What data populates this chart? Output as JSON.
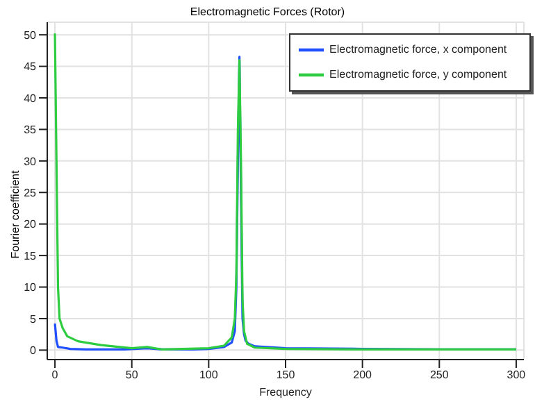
{
  "chart_data": {
    "type": "line",
    "title": "Electromagnetic Forces (Rotor)",
    "xlabel": "Frequency",
    "ylabel": "Fourier coefficient",
    "xlim": [
      -5,
      305
    ],
    "xticks": [
      0,
      50,
      100,
      150,
      200,
      250,
      300
    ],
    "ylim": [
      -1.5,
      52
    ],
    "yticks": [
      0,
      5,
      10,
      15,
      20,
      25,
      30,
      35,
      40,
      45,
      50
    ],
    "grid": true,
    "legend": "top right",
    "marker": "none",
    "line_style": "solid",
    "series": [
      {
        "name": "Electromagnetic force, x component",
        "color": "#1f4fff",
        "x": [
          0,
          1,
          2,
          5,
          10,
          20,
          30,
          45,
          60,
          70,
          90,
          100,
          110,
          115,
          117,
          118,
          119,
          120,
          121,
          122,
          123,
          124,
          126,
          130,
          150,
          200,
          250,
          300
        ],
        "values": [
          4.2,
          1.5,
          0.5,
          0.4,
          0.2,
          0.1,
          0.1,
          0.1,
          0.3,
          0.1,
          0.1,
          0.2,
          0.5,
          1.2,
          3,
          10,
          30,
          46.5,
          25,
          5,
          2.5,
          1.5,
          1,
          0.6,
          0.3,
          0.2,
          0.1,
          0.1
        ]
      },
      {
        "name": "Electromagnetic force, y component",
        "color": "#2ecc40",
        "x": [
          0,
          1,
          2,
          3,
          5,
          8,
          15,
          30,
          50,
          60,
          70,
          100,
          110,
          115,
          117,
          118,
          119,
          120,
          121,
          122,
          123,
          125,
          130,
          150,
          200,
          250,
          300
        ],
        "values": [
          50.2,
          30,
          10,
          5,
          3.5,
          2.2,
          1.4,
          0.8,
          0.3,
          0.5,
          0.1,
          0.3,
          0.7,
          2,
          5,
          12,
          35,
          46,
          30,
          8,
          3,
          1,
          0.4,
          0.2,
          0.1,
          0.1,
          0.1
        ]
      }
    ]
  }
}
